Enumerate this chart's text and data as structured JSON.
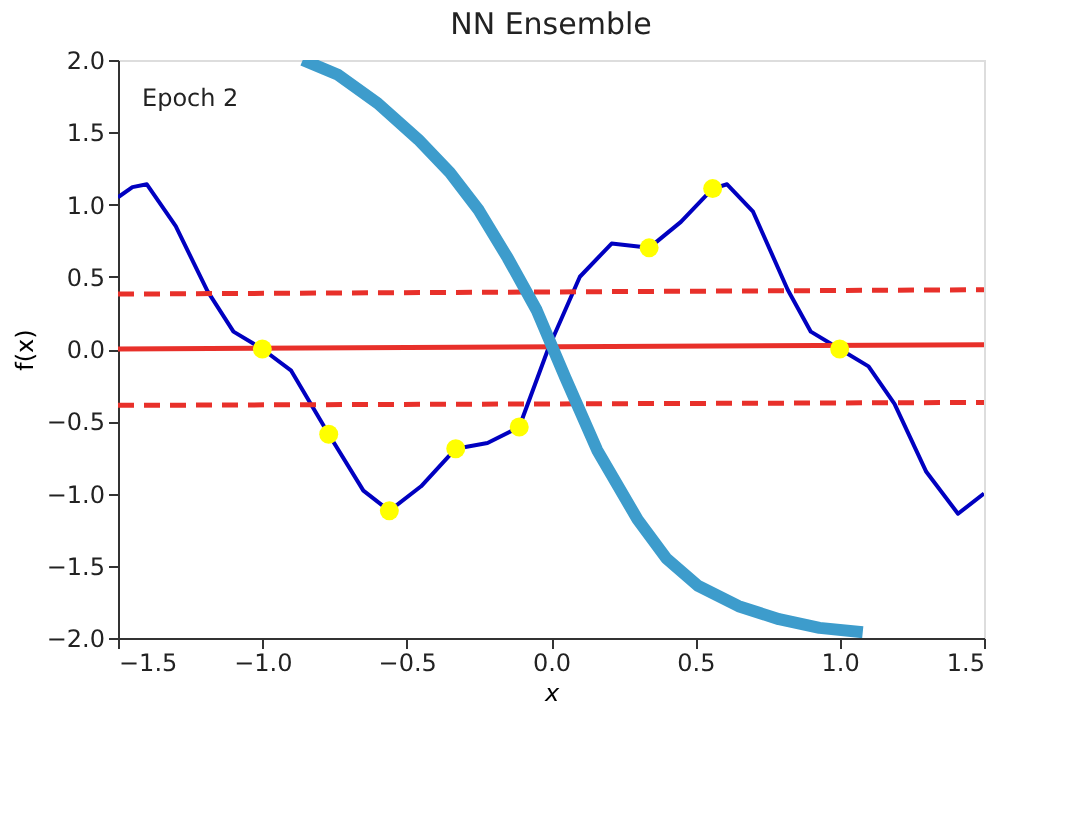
{
  "chart_data": {
    "type": "line",
    "title": "NN Ensemble",
    "xlabel": "x",
    "ylabel": "f(x)",
    "annotations": [
      "Epoch 2"
    ],
    "xlim": [
      -1.5,
      1.5
    ],
    "xticks": [
      {
        "value": -1.5,
        "label": "−1.5"
      },
      {
        "value": -1,
        "label": "−1.0"
      },
      {
        "value": -0.5,
        "label": "−0.5"
      },
      {
        "value": 0,
        "label": "0.0"
      },
      {
        "value": 0.5,
        "label": "0.5"
      },
      {
        "value": 1,
        "label": "1.0"
      },
      {
        "value": 1.5,
        "label": "1.5"
      }
    ],
    "ylim": [
      -2.0,
      2.0
    ],
    "yticks": [
      {
        "value": -2,
        "label": "−2.0"
      },
      {
        "value": -1.5,
        "label": "−1.5"
      },
      {
        "value": -1,
        "label": "−1.0"
      },
      {
        "value": -0.5,
        "label": "−0.5"
      },
      {
        "value": 0,
        "label": "0.0"
      },
      {
        "value": 0.5,
        "label": "0.5"
      },
      {
        "value": 1,
        "label": "1.0"
      },
      {
        "value": 1.5,
        "label": "1.5"
      },
      {
        "value": 2,
        "label": "2.0"
      }
    ],
    "grid": false,
    "series": [
      {
        "type": "line",
        "color": "#0000c0",
        "line_style": "solid",
        "x": [
          -1.5,
          -1.45,
          -1.4,
          -1.3,
          -1.19,
          -1.1,
          -1.0,
          -0.9,
          -0.77,
          -0.65,
          -0.56,
          -0.45,
          -0.33,
          -0.22,
          -0.11,
          -0.01,
          0.1,
          0.21,
          0.34,
          0.45,
          0.56,
          0.61,
          0.7,
          0.82,
          0.9,
          1.0,
          1.1,
          1.19,
          1.3,
          1.41,
          1.5
        ],
        "values": [
          1.05,
          1.12,
          1.14,
          0.85,
          0.4,
          0.12,
          0.0,
          -0.15,
          -0.59,
          -0.98,
          -1.12,
          -0.95,
          -0.69,
          -0.65,
          -0.54,
          0.0,
          0.5,
          0.73,
          0.7,
          0.88,
          1.11,
          1.14,
          0.95,
          0.41,
          0.12,
          0.0,
          -0.12,
          -0.38,
          -0.85,
          -1.14,
          -1.0
        ]
      },
      {
        "type": "line",
        "color": "#e8302a",
        "line_style": "solid",
        "x": [
          -1.5,
          1.5
        ],
        "values": [
          0.0,
          0.03
        ]
      },
      {
        "type": "line",
        "color": "#e8302a",
        "line_style": "dashed",
        "x": [
          -1.5,
          1.5
        ],
        "values": [
          0.38,
          0.41
        ]
      },
      {
        "type": "line",
        "color": "#e8302a",
        "line_style": "dashed",
        "x": [
          -1.5,
          1.5
        ],
        "values": [
          -0.39,
          -0.37
        ]
      },
      {
        "type": "scatter",
        "color": "#ffff00",
        "marker": "circle",
        "x": [
          -1.0,
          -0.77,
          -0.56,
          -0.33,
          -0.11,
          0.34,
          0.56,
          1.0
        ],
        "values": [
          0.0,
          -0.59,
          -1.12,
          -0.69,
          -0.54,
          0.7,
          1.11,
          0.0
        ]
      },
      {
        "type": "line",
        "color": "#3d9ccc",
        "line_style": "solid",
        "x": [
          -0.86,
          -0.74,
          -0.6,
          -0.46,
          -0.35,
          -0.25,
          -0.15,
          -0.05,
          0.05,
          0.16,
          0.3,
          0.4,
          0.51,
          0.65,
          0.79,
          0.93,
          1.08
        ],
        "values": [
          2.0,
          1.9,
          1.7,
          1.45,
          1.22,
          0.96,
          0.63,
          0.27,
          -0.2,
          -0.7,
          -1.18,
          -1.45,
          -1.64,
          -1.78,
          -1.87,
          -1.93,
          -1.96
        ]
      }
    ]
  }
}
